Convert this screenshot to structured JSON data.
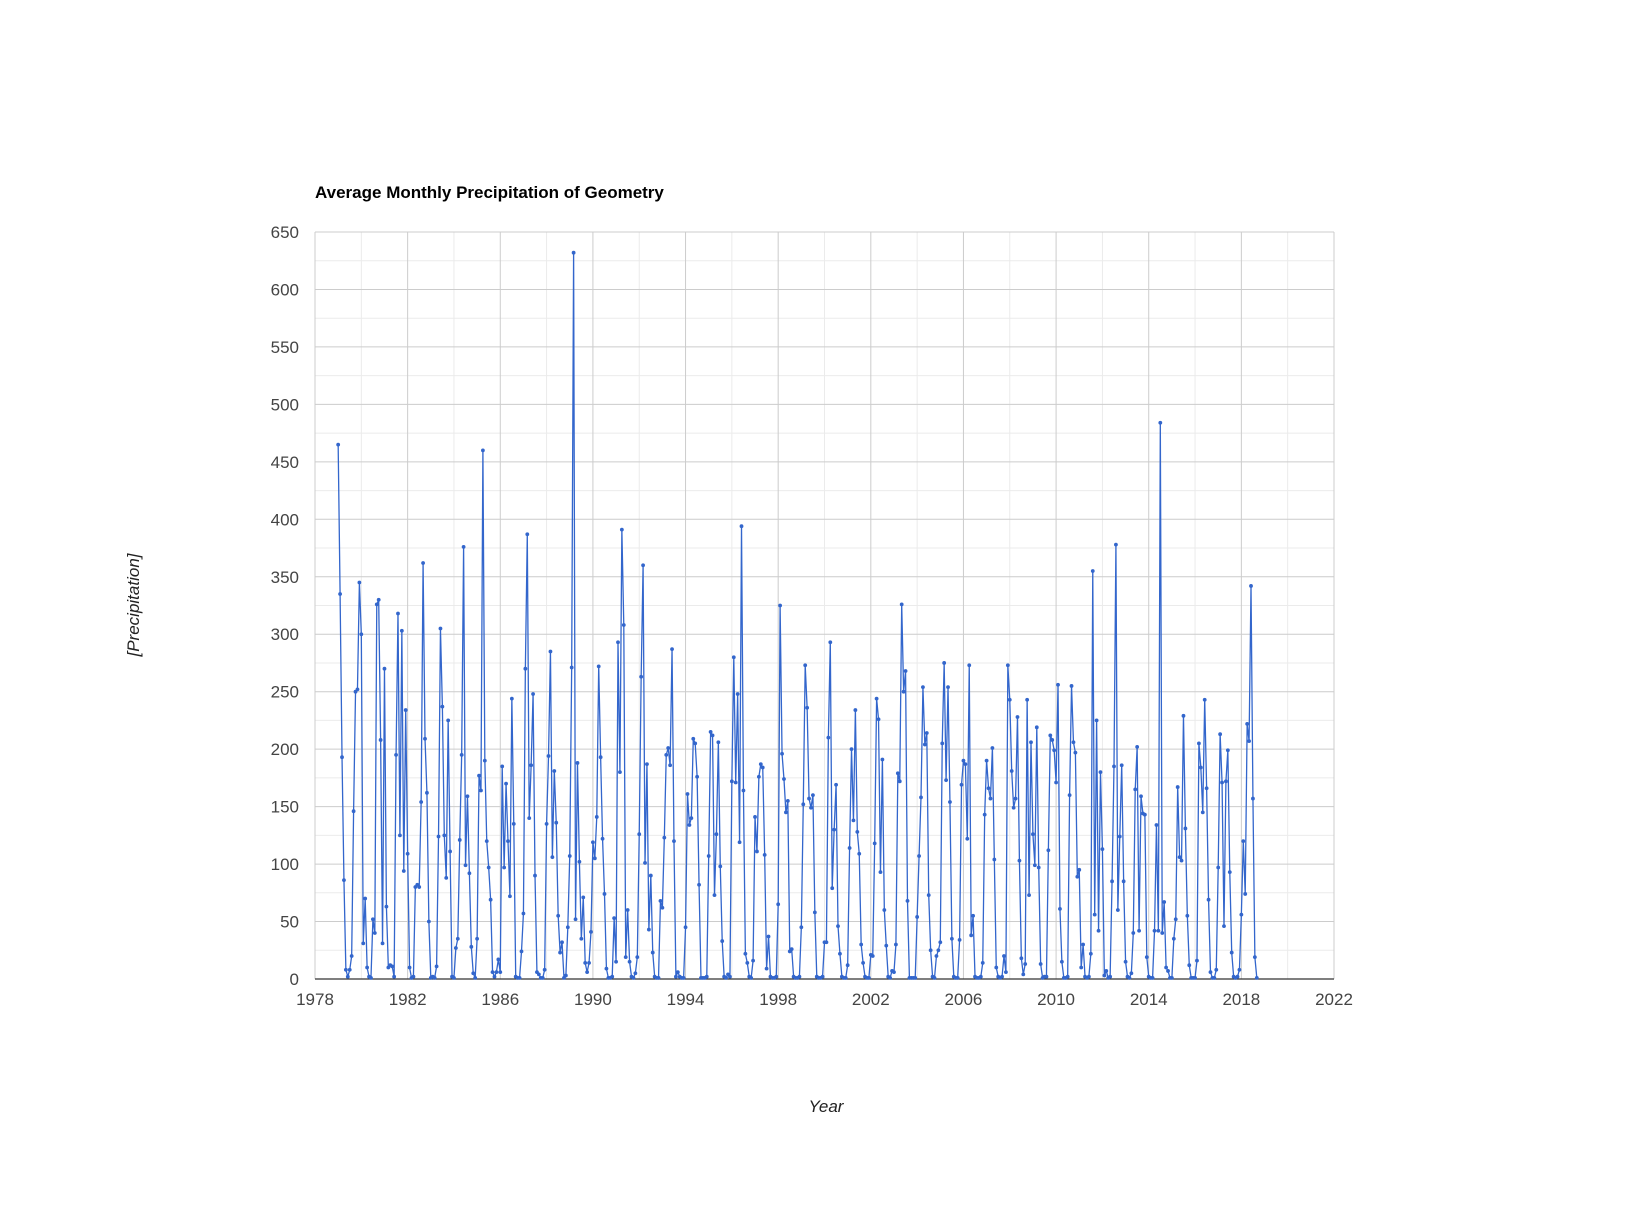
{
  "chart_data": {
    "type": "line",
    "title": "Average Monthly Precipitation of Geometry",
    "xlabel": "Year",
    "ylabel": "[Precipitation]",
    "xlim": [
      1978,
      2022
    ],
    "ylim": [
      0,
      650
    ],
    "x_ticks": [
      "1978",
      "1982",
      "1986",
      "1990",
      "1994",
      "1998",
      "2002",
      "2006",
      "2010",
      "2014",
      "2018",
      "2022"
    ],
    "y_ticks": [
      "0",
      "50",
      "100",
      "150",
      "200",
      "250",
      "300",
      "350",
      "400",
      "450",
      "500",
      "550",
      "600",
      "650"
    ],
    "grid": true,
    "legend": "none",
    "colors": {
      "series": "#3366cc",
      "grid_major": "#cccccc",
      "grid_minor": "#ebebeb",
      "axis_text": "#444444",
      "title_text": "#000000"
    },
    "series": [
      {
        "x_start": "1979-01",
        "frequency": "monthly",
        "values": [
          465,
          335,
          193,
          86,
          8,
          2,
          8,
          20,
          146,
          250,
          252,
          345,
          300,
          31,
          70,
          10,
          2,
          1,
          52,
          40,
          326,
          330,
          208,
          31,
          270,
          63,
          10,
          12,
          11,
          2,
          195,
          318,
          125,
          303,
          94,
          234,
          109,
          10,
          1,
          2,
          80,
          82,
          80,
          154,
          362,
          209,
          162,
          50,
          1,
          2,
          1,
          11,
          124,
          305,
          237,
          125,
          88,
          225,
          111,
          2,
          1,
          27,
          35,
          121,
          195,
          376,
          99,
          159,
          92,
          28,
          5,
          1,
          35,
          177,
          164,
          460,
          190,
          120,
          97,
          69,
          6,
          2,
          6,
          17,
          6,
          185,
          97,
          170,
          120,
          72,
          244,
          135,
          2,
          1,
          1,
          24,
          57,
          270,
          387,
          140,
          186,
          248,
          90,
          6,
          4,
          1,
          1,
          8,
          135,
          194,
          285,
          106,
          181,
          136,
          55,
          23,
          32,
          1,
          3,
          45,
          107,
          271,
          632,
          52,
          188,
          102,
          35,
          71,
          14,
          6,
          14,
          41,
          119,
          105,
          141,
          272,
          193,
          122,
          74,
          9,
          1,
          1,
          2,
          53,
          15,
          293,
          180,
          391,
          308,
          19,
          60,
          15,
          2,
          1,
          5,
          19,
          126,
          263,
          360,
          101,
          187,
          43,
          90,
          23,
          2,
          1,
          1,
          68,
          62,
          123,
          195,
          201,
          186,
          287,
          120,
          2,
          6,
          2,
          1,
          1,
          45,
          161,
          134,
          140,
          209,
          205,
          176,
          82,
          1,
          1,
          1,
          2,
          107,
          215,
          212,
          73,
          126,
          206,
          98,
          33,
          2,
          1,
          4,
          2,
          172,
          280,
          171,
          248,
          119,
          394,
          164,
          22,
          14,
          2,
          1,
          16,
          141,
          111,
          176,
          187,
          184,
          108,
          9,
          37,
          2,
          1,
          1,
          2,
          65,
          325,
          196,
          174,
          145,
          155,
          24,
          26,
          2,
          1,
          1,
          2,
          45,
          152,
          273,
          236,
          157,
          149,
          160,
          58,
          2,
          1,
          1,
          2,
          32,
          32,
          210,
          293,
          79,
          130,
          169,
          46,
          22,
          2,
          1,
          1,
          12,
          114,
          200,
          138,
          234,
          128,
          109,
          30,
          14,
          2,
          1,
          1,
          21,
          20,
          118,
          244,
          226,
          93,
          191,
          60,
          29,
          2,
          1,
          7,
          6,
          30,
          179,
          172,
          326,
          250,
          268,
          68,
          1,
          1,
          1,
          1,
          54,
          107,
          158,
          254,
          204,
          214,
          73,
          25,
          2,
          1,
          20,
          25,
          32,
          205,
          275,
          173,
          254,
          154,
          35,
          2,
          1,
          1,
          34,
          169,
          190,
          187,
          122,
          273,
          38,
          55,
          2,
          1,
          1,
          2,
          14,
          143,
          190,
          166,
          157,
          201,
          104,
          10,
          2,
          1,
          2,
          20,
          6,
          273,
          243,
          181,
          149,
          157,
          228,
          103,
          18,
          4,
          13,
          243,
          73,
          206,
          126,
          99,
          219,
          97,
          13,
          1,
          2,
          2,
          112,
          212,
          208,
          199,
          171,
          256,
          61,
          15,
          1,
          1,
          2,
          160,
          255,
          206,
          197,
          89,
          95,
          10,
          30,
          2,
          1,
          2,
          22,
          355,
          56,
          225,
          42,
          180,
          113,
          3,
          7,
          1,
          2,
          85,
          185,
          378,
          60,
          124,
          186,
          85,
          15,
          2,
          1,
          5,
          40,
          165,
          202,
          42,
          159,
          144,
          143,
          19,
          2,
          1,
          1,
          42,
          134,
          42,
          484,
          40,
          67,
          10,
          7,
          1,
          1,
          35,
          52,
          167,
          106,
          103,
          229,
          131,
          55,
          12,
          1,
          1,
          1,
          16,
          205,
          184,
          145,
          243,
          166,
          69,
          6,
          1,
          1,
          8,
          97,
          213,
          171,
          46,
          172,
          199,
          93,
          23,
          2,
          1,
          2,
          8,
          56,
          120,
          74,
          222,
          207,
          342,
          157,
          19,
          1
        ]
      }
    ]
  }
}
